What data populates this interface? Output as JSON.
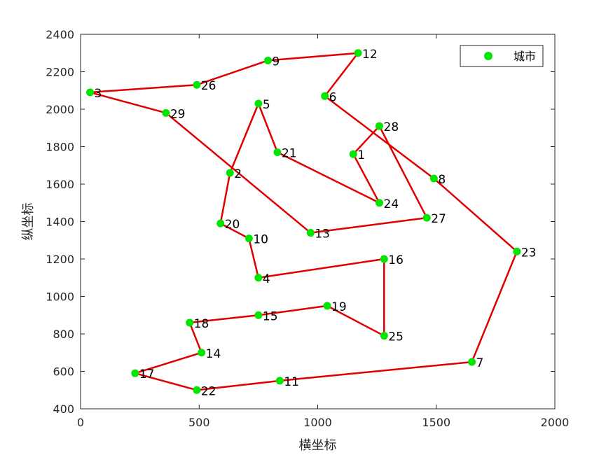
{
  "chart_data": {
    "type": "scatter",
    "title": "",
    "xlabel": "横坐标",
    "ylabel": "纵坐标",
    "xlim": [
      0,
      2000
    ],
    "ylim": [
      400,
      2400
    ],
    "xticks": [
      0,
      500,
      1000,
      1500,
      2000
    ],
    "yticks": [
      400,
      600,
      800,
      1000,
      1200,
      1400,
      1600,
      1800,
      2000,
      2200,
      2400
    ],
    "grid": false,
    "legend": {
      "position": "top-right",
      "entries": [
        "城市"
      ]
    },
    "colors": {
      "points": "#00e600",
      "route": "#e00000",
      "axis": "#262626",
      "text": "#000000"
    },
    "cities": [
      {
        "label": "1",
        "x": 1150,
        "y": 1760
      },
      {
        "label": "2",
        "x": 630,
        "y": 1660
      },
      {
        "label": "3",
        "x": 40,
        "y": 2090
      },
      {
        "label": "4",
        "x": 750,
        "y": 1100
      },
      {
        "label": "5",
        "x": 750,
        "y": 2030
      },
      {
        "label": "6",
        "x": 1030,
        "y": 2070
      },
      {
        "label": "7",
        "x": 1650,
        "y": 650
      },
      {
        "label": "8",
        "x": 1490,
        "y": 1630
      },
      {
        "label": "9",
        "x": 790,
        "y": 2260
      },
      {
        "label": "10",
        "x": 710,
        "y": 1310
      },
      {
        "label": "11",
        "x": 840,
        "y": 550
      },
      {
        "label": "12",
        "x": 1170,
        "y": 2300
      },
      {
        "label": "13",
        "x": 970,
        "y": 1340
      },
      {
        "label": "14",
        "x": 510,
        "y": 700
      },
      {
        "label": "15",
        "x": 750,
        "y": 900
      },
      {
        "label": "16",
        "x": 1280,
        "y": 1200
      },
      {
        "label": "17",
        "x": 230,
        "y": 590
      },
      {
        "label": "18",
        "x": 460,
        "y": 860
      },
      {
        "label": "19",
        "x": 1040,
        "y": 950
      },
      {
        "label": "20",
        "x": 590,
        "y": 1390
      },
      {
        "label": "21",
        "x": 830,
        "y": 1770
      },
      {
        "label": "22",
        "x": 490,
        "y": 500
      },
      {
        "label": "23",
        "x": 1840,
        "y": 1240
      },
      {
        "label": "24",
        "x": 1260,
        "y": 1500
      },
      {
        "label": "25",
        "x": 1280,
        "y": 790
      },
      {
        "label": "26",
        "x": 490,
        "y": 2130
      },
      {
        "label": "27",
        "x": 1460,
        "y": 1420
      },
      {
        "label": "28",
        "x": 1260,
        "y": 1910
      },
      {
        "label": "29",
        "x": 360,
        "y": 1980
      }
    ],
    "route": [
      "3",
      "26",
      "9",
      "12",
      "6",
      "8",
      "23",
      "7",
      "11",
      "22",
      "17",
      "14",
      "18",
      "15",
      "19",
      "25",
      "16",
      "4",
      "10",
      "20",
      "2",
      "5",
      "21",
      "24",
      "1",
      "28",
      "27",
      "13",
      "29",
      "3"
    ]
  }
}
